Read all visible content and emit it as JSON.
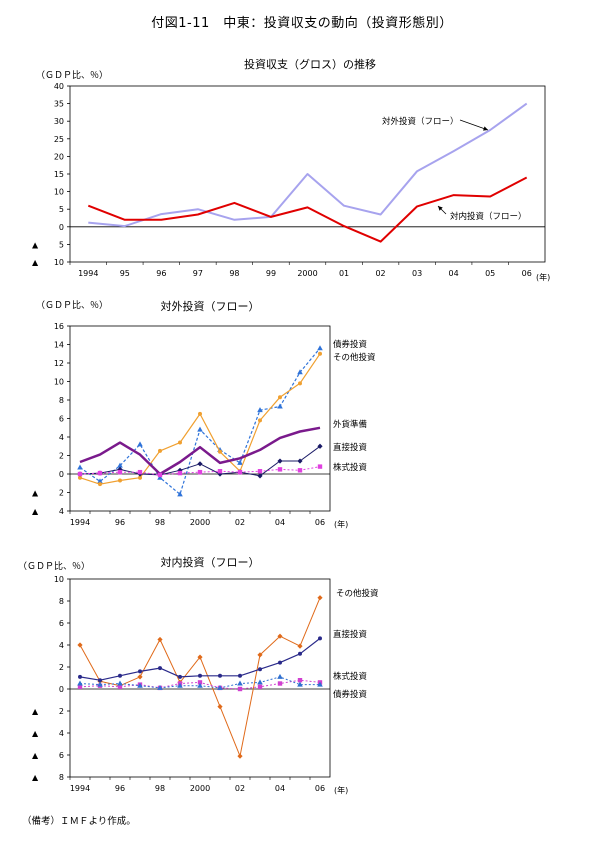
{
  "page": {
    "title": "付図1-11　中東：投資収支の動向（投資形態別）",
    "note": "（備考）ＩＭＦより作成。"
  },
  "chart_data": [
    {
      "type": "line",
      "title": "投資収支（グロス）の推移",
      "ylabel": "（ＧＤＰ比、％）",
      "xunit": "(年)",
      "categories": [
        "1994",
        "95",
        "96",
        "97",
        "98",
        "99",
        "2000",
        "01",
        "02",
        "03",
        "04",
        "05",
        "06"
      ],
      "ylim": [
        -10,
        40
      ],
      "yticks": [
        40,
        35,
        30,
        25,
        20,
        15,
        10,
        5,
        0,
        -5,
        -10
      ],
      "neg_marker": "▲",
      "grid": false,
      "series": [
        {
          "name": "対外投資（フロー）",
          "color": "#a7a3ee",
          "width": 2,
          "marker": "none",
          "values": [
            1.2,
            0.2,
            3.6,
            5.0,
            2.0,
            2.8,
            15.0,
            6.0,
            3.5,
            15.8,
            21.5,
            27.5,
            35.0
          ]
        },
        {
          "name": "対内投資（フロー）",
          "color": "#e00000",
          "width": 2,
          "marker": "none",
          "values": [
            6.0,
            2.0,
            2.0,
            3.5,
            6.8,
            2.8,
            5.5,
            0.2,
            -4.2,
            5.8,
            9.0,
            8.6,
            14.0
          ]
        }
      ]
    },
    {
      "type": "line",
      "title": "対外投資（フロー）",
      "ylabel": "（ＧＤＰ比、％）",
      "xunit": "(年)",
      "categories": [
        "1994",
        "95",
        "96",
        "97",
        "98",
        "99",
        "2000",
        "01",
        "02",
        "03",
        "04",
        "05",
        "06"
      ],
      "xtick_labels": [
        "1994",
        "",
        "96",
        "",
        "98",
        "",
        "2000",
        "",
        "02",
        "",
        "04",
        "",
        "06"
      ],
      "ylim": [
        -4,
        16
      ],
      "yticks": [
        16,
        14,
        12,
        10,
        8,
        6,
        4,
        2,
        0,
        -2,
        -4
      ],
      "neg_marker": "▲",
      "grid": false,
      "series": [
        {
          "name": "債券投資",
          "color": "#2f73d9",
          "width": 1.2,
          "dash": "3,2",
          "marker": "triangle",
          "values": [
            0.7,
            -0.8,
            0.9,
            3.2,
            -0.4,
            -2.2,
            4.8,
            2.6,
            1.2,
            6.9,
            7.3,
            11.0,
            13.6
          ]
        },
        {
          "name": "その他投資",
          "color": "#f0a030",
          "width": 1.2,
          "marker": "circle",
          "values": [
            -0.4,
            -1.1,
            -0.7,
            -0.4,
            2.5,
            3.4,
            6.5,
            2.4,
            0.3,
            5.8,
            8.3,
            9.8,
            13.0
          ]
        },
        {
          "name": "外貨準備",
          "color": "#7a1a8c",
          "width": 2.5,
          "marker": "none",
          "values": [
            1.3,
            2.1,
            3.4,
            2.1,
            0.0,
            1.3,
            2.9,
            1.2,
            1.7,
            2.6,
            3.9,
            4.6,
            5.0
          ]
        },
        {
          "name": "直接投資",
          "color": "#1a1a66",
          "width": 1,
          "marker": "diamond",
          "values": [
            0.0,
            0.1,
            0.5,
            0.0,
            -0.1,
            0.4,
            1.1,
            0.0,
            0.2,
            -0.2,
            1.4,
            1.4,
            3.0
          ]
        },
        {
          "name": "株式投資",
          "color": "#e040e0",
          "width": 1,
          "dash": "2,2",
          "marker": "square",
          "values": [
            0.0,
            0.1,
            0.2,
            0.2,
            -0.1,
            0.1,
            0.2,
            0.3,
            0.2,
            0.3,
            0.5,
            0.4,
            0.8
          ]
        }
      ]
    },
    {
      "type": "line",
      "title": "対内投資（フロー）",
      "ylabel": "（ＧＤＰ比、％）",
      "xunit": "(年)",
      "categories": [
        "1994",
        "95",
        "96",
        "97",
        "98",
        "99",
        "2000",
        "01",
        "02",
        "03",
        "04",
        "05",
        "06"
      ],
      "xtick_labels": [
        "1994",
        "",
        "96",
        "",
        "98",
        "",
        "2000",
        "",
        "02",
        "",
        "04",
        "",
        "06"
      ],
      "ylim": [
        -8,
        10
      ],
      "yticks": [
        10,
        8,
        6,
        4,
        2,
        0,
        -2,
        -4,
        -6,
        -8
      ],
      "neg_marker": "▲",
      "grid": false,
      "series": [
        {
          "name": "その他投資",
          "color": "#e06a1a",
          "width": 1,
          "marker": "diamond",
          "values": [
            4.0,
            0.7,
            0.3,
            1.1,
            4.5,
            0.6,
            2.9,
            -1.6,
            -6.1,
            3.1,
            4.8,
            3.9,
            8.3
          ]
        },
        {
          "name": "直接投資",
          "color": "#2a2a8a",
          "width": 1.2,
          "marker": "circle",
          "values": [
            1.1,
            0.8,
            1.2,
            1.6,
            1.9,
            1.1,
            1.2,
            1.2,
            1.2,
            1.8,
            2.4,
            3.2,
            4.6
          ]
        },
        {
          "name": "株式投資",
          "color": "#d040d0",
          "width": 1,
          "dash": "2,2",
          "marker": "square",
          "values": [
            0.2,
            0.3,
            0.2,
            0.4,
            0.1,
            0.5,
            0.6,
            0.1,
            0.0,
            0.2,
            0.5,
            0.8,
            0.6
          ]
        },
        {
          "name": "債券投資",
          "color": "#3070d0",
          "width": 1,
          "dash": "2,2",
          "marker": "triangle",
          "values": [
            0.5,
            0.4,
            0.5,
            0.3,
            0.1,
            0.3,
            0.3,
            0.1,
            0.5,
            0.6,
            1.1,
            0.4,
            0.4
          ]
        }
      ]
    }
  ]
}
